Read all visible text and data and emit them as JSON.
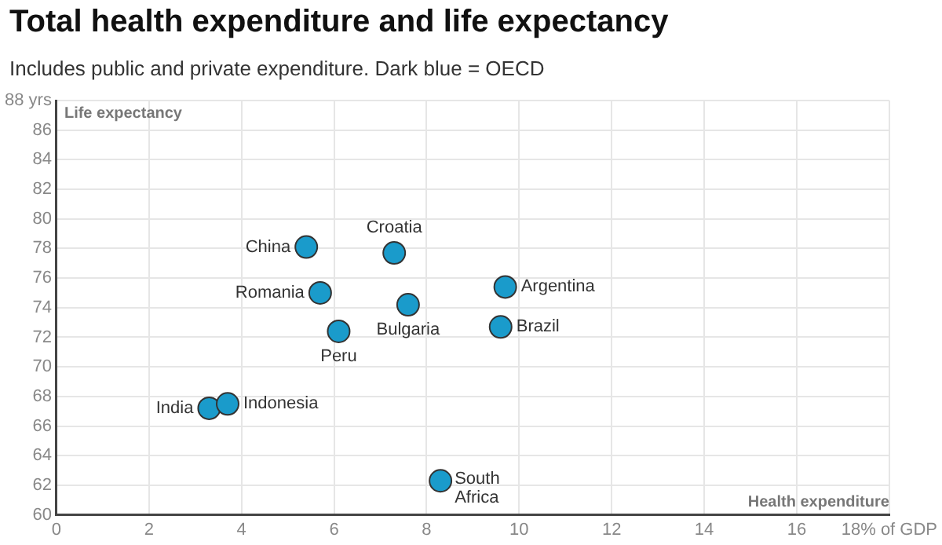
{
  "chart_data": {
    "type": "scatter",
    "title": "Total health expenditure and life expectancy",
    "subtitle": "Includes public and private expenditure. Dark blue = OECD",
    "xlabel": "Health expenditure",
    "ylabel": "Life expectancy",
    "series": [
      {
        "color": "#1a9bcb",
        "x": [
          5.4,
          7.3,
          5.7,
          7.6,
          6.1,
          9.7,
          9.6,
          3.3,
          3.7,
          8.3
        ],
        "values": [
          78.1,
          77.7,
          75.0,
          74.2,
          72.4,
          75.4,
          72.7,
          67.2,
          67.5,
          62.3
        ]
      }
    ],
    "annotations": [
      {
        "text": "China",
        "x": 5.4,
        "y": 78.1
      },
      {
        "text": "Croatia",
        "x": 7.3,
        "y": 77.7
      },
      {
        "text": "Romania",
        "x": 5.7,
        "y": 75.0
      },
      {
        "text": "Bulgaria",
        "x": 7.6,
        "y": 74.2
      },
      {
        "text": "Peru",
        "x": 6.1,
        "y": 72.4
      },
      {
        "text": "Argentina",
        "x": 9.7,
        "y": 75.4
      },
      {
        "text": "Brazil",
        "x": 9.6,
        "y": 72.7
      },
      {
        "text": "India",
        "x": 3.3,
        "y": 67.2
      },
      {
        "text": "Indonesia",
        "x": 3.7,
        "y": 67.5
      },
      {
        "text": "South Africa",
        "x": 8.3,
        "y": 62.3
      }
    ],
    "xlim": [
      0,
      18
    ],
    "xticks": [
      0,
      2,
      4,
      6,
      8,
      10,
      12,
      14,
      16,
      {
        "value": 18,
        "label": "18% of GDP"
      }
    ],
    "ylim": [
      60,
      88
    ],
    "yticks": [
      60,
      62,
      64,
      66,
      68,
      70,
      72,
      74,
      76,
      78,
      80,
      82,
      84,
      86,
      {
        "value": 88,
        "label": "88 yrs"
      }
    ],
    "grid": true,
    "legend": false,
    "marker": "circle"
  }
}
